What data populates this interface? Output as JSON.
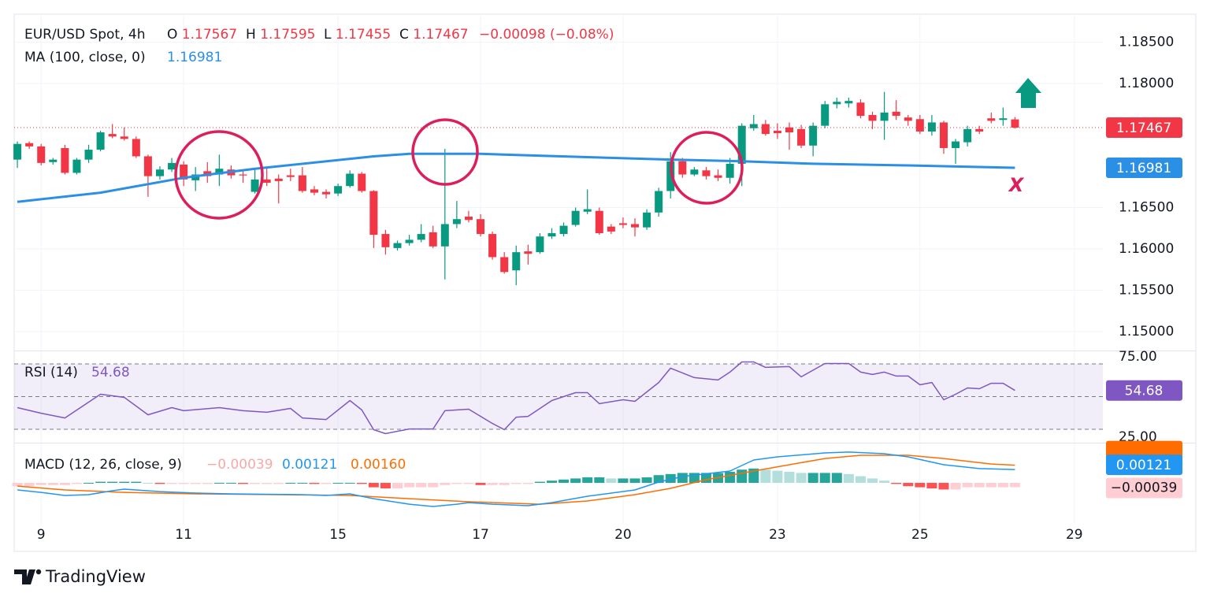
{
  "chart_data": [
    {
      "type": "candlestick",
      "title": "EUR/USD Spot, 4h",
      "ohlc_labels": [
        "O",
        "H",
        "L",
        "C"
      ],
      "change": "−0.00098 (−0.08%)",
      "up_color": "#089981",
      "down_color": "#f23645",
      "open": [
        1.1708,
        1.1728,
        1.1724,
        1.1705,
        1.1722,
        1.1692,
        1.1708,
        1.172,
        1.1739,
        1.1736,
        1.1733,
        1.1712,
        1.1688,
        1.1696,
        1.1702,
        1.1683,
        1.1694,
        1.169,
        1.1696,
        1.169,
        1.1669,
        1.1684,
        1.1685,
        1.1689,
        1.1689,
        1.1672,
        1.1669,
        1.1667,
        1.1676,
        1.1691,
        1.167,
        1.1618,
        1.1601,
        1.1607,
        1.1611,
        1.162,
        1.1603,
        1.163,
        1.1639,
        1.1636,
        1.1618,
        1.159,
        1.1574,
        1.1597,
        1.1596,
        1.1615,
        1.1618,
        1.1629,
        1.1645,
        1.1646,
        1.1627,
        1.1631,
        1.163,
        1.1626,
        1.1644,
        1.167,
        1.1706,
        1.169,
        1.1695,
        1.1689,
        1.1686,
        1.1703,
        1.1746,
        1.1751,
        1.1743,
        1.1747,
        1.1745,
        1.1725,
        1.1749,
        1.1775,
        1.1776,
        1.1777,
        1.1762,
        1.1755,
        1.1766,
        1.1759,
        1.1757,
        1.1742,
        1.1753,
        1.1722,
        1.1729,
        1.1745,
        1.1758,
        1.1756,
        1.17567
      ],
      "high": [
        1.173,
        1.173,
        1.1727,
        1.171,
        1.1726,
        1.171,
        1.1726,
        1.1743,
        1.1751,
        1.1747,
        1.1736,
        1.1714,
        1.17,
        1.171,
        1.1706,
        1.1699,
        1.1705,
        1.1714,
        1.1701,
        1.1695,
        1.1697,
        1.1699,
        1.169,
        1.1697,
        1.1699,
        1.1676,
        1.1672,
        1.1679,
        1.1695,
        1.1693,
        1.1671,
        1.1623,
        1.161,
        1.1617,
        1.163,
        1.1628,
        1.1721,
        1.1658,
        1.1646,
        1.1642,
        1.1621,
        1.1596,
        1.1604,
        1.1605,
        1.1619,
        1.1625,
        1.1632,
        1.165,
        1.1672,
        1.165,
        1.163,
        1.1638,
        1.1637,
        1.1648,
        1.1674,
        1.1717,
        1.171,
        1.1699,
        1.1699,
        1.1696,
        1.171,
        1.1752,
        1.1762,
        1.1756,
        1.1752,
        1.1753,
        1.175,
        1.1753,
        1.1779,
        1.1783,
        1.1783,
        1.1781,
        1.1766,
        1.179,
        1.178,
        1.1762,
        1.1762,
        1.1762,
        1.1755,
        1.1733,
        1.1749,
        1.1749,
        1.1765,
        1.1771,
        1.17595
      ],
      "low": [
        1.1698,
        1.1721,
        1.1701,
        1.1702,
        1.169,
        1.169,
        1.1704,
        1.1718,
        1.1734,
        1.1731,
        1.171,
        1.1663,
        1.1684,
        1.1693,
        1.1676,
        1.167,
        1.168,
        1.1676,
        1.1685,
        1.168,
        1.1667,
        1.1676,
        1.1655,
        1.1682,
        1.1668,
        1.1665,
        1.1661,
        1.1664,
        1.1674,
        1.1668,
        1.1601,
        1.1593,
        1.1598,
        1.1604,
        1.1608,
        1.1601,
        1.1563,
        1.1625,
        1.1632,
        1.1615,
        1.1587,
        1.157,
        1.1556,
        1.1581,
        1.1594,
        1.1612,
        1.1615,
        1.1627,
        1.1642,
        1.1617,
        1.1618,
        1.1625,
        1.1615,
        1.1623,
        1.1639,
        1.1661,
        1.1686,
        1.1688,
        1.1684,
        1.1682,
        1.1679,
        1.1676,
        1.1743,
        1.1737,
        1.1733,
        1.172,
        1.1722,
        1.1712,
        1.1746,
        1.177,
        1.1771,
        1.1758,
        1.1745,
        1.1732,
        1.1756,
        1.1749,
        1.1739,
        1.1737,
        1.1715,
        1.1703,
        1.1724,
        1.1739,
        1.1752,
        1.1749,
        1.17455
      ],
      "close": [
        1.1727,
        1.1724,
        1.1704,
        1.1708,
        1.1692,
        1.1708,
        1.172,
        1.1741,
        1.1736,
        1.1733,
        1.1712,
        1.1688,
        1.1696,
        1.1704,
        1.1684,
        1.169,
        1.1688,
        1.1697,
        1.1689,
        1.1689,
        1.1684,
        1.168,
        1.1682,
        1.1687,
        1.167,
        1.1668,
        1.1666,
        1.1676,
        1.1691,
        1.167,
        1.1617,
        1.1602,
        1.1607,
        1.1611,
        1.1618,
        1.1603,
        1.163,
        1.1636,
        1.1635,
        1.1618,
        1.159,
        1.1572,
        1.1596,
        1.1594,
        1.1615,
        1.1619,
        1.1628,
        1.1646,
        1.1648,
        1.1619,
        1.1621,
        1.1629,
        1.1626,
        1.1644,
        1.167,
        1.1706,
        1.169,
        1.1696,
        1.1688,
        1.1686,
        1.1703,
        1.1749,
        1.1751,
        1.1739,
        1.174,
        1.1741,
        1.1725,
        1.1749,
        1.1775,
        1.1778,
        1.1779,
        1.1761,
        1.1755,
        1.1765,
        1.1761,
        1.1755,
        1.1742,
        1.1753,
        1.1722,
        1.173,
        1.1745,
        1.1742,
        1.1755,
        1.1758,
        1.17467
      ],
      "ma": {
        "name": "MA (100, close, 0)",
        "color": "#2b8fe6",
        "x": [
          0,
          7,
          14,
          20,
          30,
          33,
          39,
          48,
          55,
          61,
          67,
          75,
          84
        ],
        "values": [
          1.1657,
          1.1668,
          1.1686,
          1.1697,
          1.1712,
          1.1715,
          1.1715,
          1.1711,
          1.1708,
          1.1706,
          1.1703,
          1.1701,
          1.16981
        ]
      },
      "ylim": [
        1.1477,
        1.1884
      ],
      "yticks": [
        {
          "value": 1.15,
          "label": "1.15000"
        },
        {
          "value": 1.155,
          "label": "1.15500"
        },
        {
          "value": 1.16,
          "label": "1.16000"
        },
        {
          "value": 1.165,
          "label": "1.16500"
        },
        {
          "value": 1.18,
          "label": "1.18000"
        },
        {
          "value": 1.185,
          "label": "1.18500"
        }
      ],
      "xlim": [
        -0.27,
        91.4
      ],
      "xticks": [
        {
          "value": 2,
          "label": "9"
        },
        {
          "value": 14,
          "label": "11"
        },
        {
          "value": 27,
          "label": "15"
        },
        {
          "value": 39,
          "label": "17"
        },
        {
          "value": 51,
          "label": "20"
        },
        {
          "value": 64,
          "label": "23"
        },
        {
          "value": 76,
          "label": "25"
        },
        {
          "value": 89,
          "label": "29"
        }
      ],
      "grid": true,
      "annotation": "X"
    },
    {
      "type": "line",
      "title": "RSI (14)",
      "color": "#7e57c2",
      "x": [
        0,
        2,
        4,
        7,
        9,
        11,
        13,
        14,
        17,
        19,
        21,
        23,
        24,
        26,
        28,
        29,
        30,
        31,
        33,
        35,
        36,
        38,
        40,
        41,
        42,
        43,
        45,
        47,
        48,
        49,
        51,
        52,
        54,
        55,
        57,
        59,
        60,
        61,
        62,
        63,
        65,
        66,
        68,
        70,
        71,
        72,
        73,
        74,
        75,
        76,
        77,
        78,
        79,
        80,
        81,
        82,
        83,
        84
      ],
      "values": [
        41.6,
        37.3,
        33.7,
        51.8,
        49.4,
        36.1,
        41.6,
        39.2,
        41.6,
        39.2,
        38.0,
        41.0,
        33.7,
        32.5,
        47.0,
        39.8,
        24.7,
        21.7,
        25.3,
        25.3,
        39.2,
        40.4,
        29.5,
        24.7,
        34.3,
        34.9,
        47.0,
        53.0,
        53.0,
        44.6,
        47.6,
        46.4,
        60.8,
        71.7,
        64.5,
        62.7,
        68.7,
        76.5,
        76.5,
        72.3,
        72.9,
        65.1,
        75.3,
        75.3,
        68.7,
        66.9,
        68.7,
        65.7,
        65.7,
        59.0,
        60.8,
        47.6,
        51.8,
        56.6,
        56.0,
        60.2,
        60.2,
        54.68
      ],
      "ylim": [
        14.8,
        84.6
      ],
      "yticks": [
        {
          "value": 75,
          "label": "75.00"
        },
        {
          "value": 25,
          "label": "25.00"
        }
      ],
      "levels": [
        75,
        50,
        25
      ]
    },
    {
      "type": "macd",
      "title": "MACD (12, 26, close, 9)",
      "macd": {
        "color": "#2196f3",
        "x": [
          0,
          2,
          4,
          6,
          8,
          9,
          12,
          15,
          18,
          24,
          26,
          28,
          30,
          33,
          35,
          37,
          38,
          40,
          43,
          45,
          48,
          52,
          54,
          56,
          60,
          62,
          64,
          68,
          70,
          73,
          75,
          78,
          81,
          84
        ],
        "values": [
          -0.00064,
          -0.00086,
          -0.00114,
          -0.00107,
          -0.00071,
          -0.00057,
          -0.00079,
          -0.00093,
          -0.001,
          -0.00107,
          -0.00114,
          -0.001,
          -0.00143,
          -0.00193,
          -0.00214,
          -0.00193,
          -0.00179,
          -0.00193,
          -0.00207,
          -0.00179,
          -0.00121,
          -0.00064,
          7e-05,
          0.00057,
          0.00107,
          0.00207,
          0.00236,
          0.00271,
          0.00279,
          0.00264,
          0.00236,
          0.00164,
          0.00129,
          0.00121
        ]
      },
      "signal": {
        "color": "#ff6d00",
        "x": [
          0,
          4,
          9,
          15,
          22,
          28,
          33,
          38,
          44,
          48,
          52,
          55,
          58,
          62,
          65,
          68,
          71,
          75,
          78,
          82,
          84
        ],
        "values": [
          -0.00029,
          -0.00064,
          -0.00086,
          -0.001,
          -0.00107,
          -0.00114,
          -0.00143,
          -0.00171,
          -0.00193,
          -0.00164,
          -0.00107,
          -0.0005,
          0.00029,
          0.00107,
          0.00164,
          0.00221,
          0.0025,
          0.0025,
          0.00221,
          0.00171,
          0.0016
        ]
      },
      "histogram": {
        "colors": [
          "#26a69a",
          "#b2dfdb",
          "#ff5252",
          "#ffcdd2"
        ],
        "values": [
          -0.0003,
          -0.0003,
          -0.0002,
          -0.0002,
          -0.0002,
          -0.0001,
          0,
          0.0001,
          0.0001,
          0.0001,
          0.0001,
          0,
          -0.0001,
          -0.0001,
          -0.0001,
          -0.0001,
          -0.0001,
          0,
          0,
          -0.0001,
          -0.0001,
          -0.0001,
          -0.0001,
          0,
          0,
          -0.0001,
          -0.0001,
          0,
          0,
          -0.0001,
          -0.0004,
          -0.0005,
          -0.0005,
          -0.0004,
          -0.0004,
          -0.0004,
          -0.0002,
          -0.0001,
          -0.0001,
          -0.0002,
          -0.0002,
          -0.0002,
          -0.0001,
          -0.0001,
          0.0001,
          0.0002,
          0.0003,
          0.0004,
          0.0005,
          0.0005,
          0.0004,
          0.0004,
          0.0004,
          0.0005,
          0.0007,
          0.0008,
          0.0009,
          0.0009,
          0.0009,
          0.0009,
          0.001,
          0.0012,
          0.0013,
          0.0012,
          0.0011,
          0.001,
          0.0009,
          0.0009,
          0.0009,
          0.0009,
          0.0008,
          0.0006,
          0.0004,
          0.0002,
          -0.0001,
          -0.0003,
          -0.0004,
          -0.0005,
          -0.0006,
          -0.0006,
          -0.0004,
          -0.0004,
          -0.0004,
          -0.0004,
          -0.00039
        ]
      },
      "last_labels": {
        "histogram": "−0.00039",
        "macd": "0.00121",
        "signal": "0.00160"
      },
      "ylim": [
        -0.00371,
        0.00357
      ]
    }
  ],
  "footer": {
    "brand": "TradingView"
  }
}
